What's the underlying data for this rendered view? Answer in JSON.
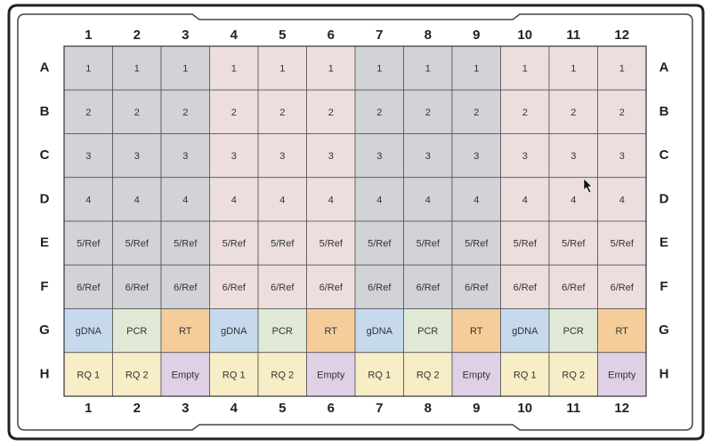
{
  "plate": {
    "columns": [
      "1",
      "2",
      "3",
      "4",
      "5",
      "6",
      "7",
      "8",
      "9",
      "10",
      "11",
      "12"
    ],
    "rows": [
      "A",
      "B",
      "C",
      "D",
      "E",
      "F",
      "G",
      "H"
    ],
    "cells": [
      [
        "1",
        "1",
        "1",
        "1",
        "1",
        "1",
        "1",
        "1",
        "1",
        "1",
        "1",
        "1"
      ],
      [
        "2",
        "2",
        "2",
        "2",
        "2",
        "2",
        "2",
        "2",
        "2",
        "2",
        "2",
        "2"
      ],
      [
        "3",
        "3",
        "3",
        "3",
        "3",
        "3",
        "3",
        "3",
        "3",
        "3",
        "3",
        "3"
      ],
      [
        "4",
        "4",
        "4",
        "4",
        "4",
        "4",
        "4",
        "4",
        "4",
        "4",
        "4",
        "4"
      ],
      [
        "5/Ref",
        "5/Ref",
        "5/Ref",
        "5/Ref",
        "5/Ref",
        "5/Ref",
        "5/Ref",
        "5/Ref",
        "5/Ref",
        "5/Ref",
        "5/Ref",
        "5/Ref"
      ],
      [
        "6/Ref",
        "6/Ref",
        "6/Ref",
        "6/Ref",
        "6/Ref",
        "6/Ref",
        "6/Ref",
        "6/Ref",
        "6/Ref",
        "6/Ref",
        "6/Ref",
        "6/Ref"
      ],
      [
        "gDNA",
        "PCR",
        "RT",
        "gDNA",
        "PCR",
        "RT",
        "gDNA",
        "PCR",
        "RT",
        "gDNA",
        "PCR",
        "RT"
      ],
      [
        "RQ 1",
        "RQ 2",
        "Empty",
        "RQ 1",
        "RQ 2",
        "Empty",
        "RQ 1",
        "RQ 2",
        "Empty",
        "RQ 1",
        "RQ 2",
        "Empty"
      ]
    ]
  }
}
